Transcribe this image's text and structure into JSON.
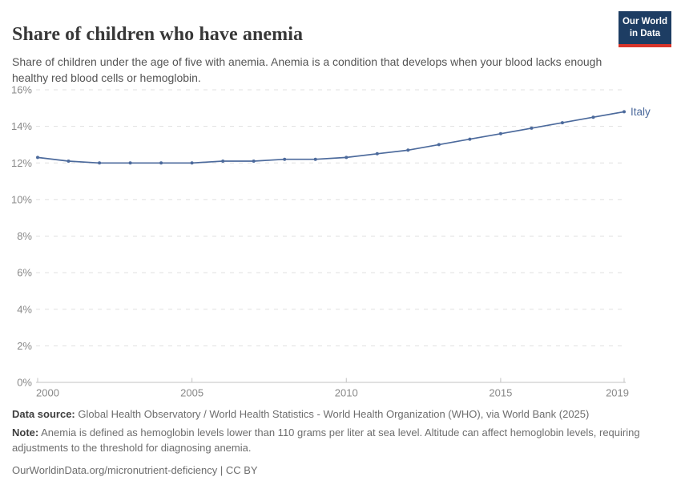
{
  "header": {
    "title": "Share of children who have anemia",
    "subtitle": "Share of children under the age of five with anemia. Anemia is a condition that develops when your blood lacks enough healthy red blood cells or hemoglobin.",
    "logo": {
      "line1": "Our World",
      "line2": "in Data"
    }
  },
  "chart_data": {
    "type": "line",
    "title": "Share of children who have anemia",
    "x": [
      2000,
      2001,
      2002,
      2003,
      2004,
      2005,
      2006,
      2007,
      2008,
      2009,
      2010,
      2011,
      2012,
      2013,
      2014,
      2015,
      2016,
      2017,
      2018,
      2019
    ],
    "series": [
      {
        "name": "Italy",
        "color": "#4c6a9c",
        "values": [
          12.3,
          12.1,
          12.0,
          12.0,
          12.0,
          12.0,
          12.1,
          12.1,
          12.2,
          12.2,
          12.3,
          12.5,
          12.7,
          13.0,
          13.3,
          13.6,
          13.9,
          14.2,
          14.5,
          14.8
        ]
      }
    ],
    "xlabel": "",
    "ylabel": "",
    "ylim": [
      0,
      16
    ],
    "ytick_step": 2,
    "ytick_suffix": "%",
    "xticks": [
      2000,
      2005,
      2010,
      2015,
      2019
    ],
    "grid": "horizontal-dashed",
    "legend": "end-of-line entity label"
  },
  "footer": {
    "data_source_label": "Data source:",
    "data_source_text": "Global Health Observatory / World Health Statistics - World Health Organization (WHO), via World Bank (2025)",
    "note_label": "Note:",
    "note_text": "Anemia is defined as hemoglobin levels lower than 110 grams per liter at sea level. Altitude can affect hemoglobin levels, requiring adjustments to the threshold for diagnosing anemia.",
    "citation": "OurWorldinData.org/micronutrient-deficiency | CC BY"
  },
  "colors": {
    "line": "#4c6a9c",
    "grid": "#e0e0e0",
    "axis": "#c3c3c3",
    "axis_text": "#898989",
    "title": "#383838",
    "subtitle": "#555555",
    "footer": "#6d6d6d",
    "logo_bg": "#1d3d63",
    "logo_accent": "#d8352a"
  }
}
